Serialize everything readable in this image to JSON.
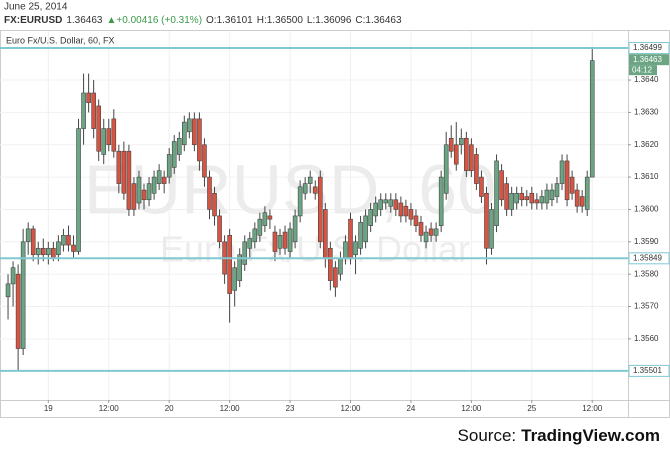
{
  "header": {
    "date": "June 25, 2014",
    "symbol": "FX:EURUSD",
    "price": "1.36463",
    "change": "▲+0.00416 (+0.31%)",
    "open": "O:1.36101",
    "high": "H:1.36500",
    "low": "L:1.36096",
    "close": "C:1.36463"
  },
  "source": {
    "prefix": "Source:",
    "site": "TradingView.com"
  },
  "chart_data": {
    "type": "candlestick",
    "subtitle": "Euro Fx/U.S. Dollar, 60, FX",
    "watermark": [
      "EURUSD, 60",
      "Euro Fx/U.S. Dollar"
    ],
    "up_color": "#6ba583",
    "down_color": "#d75442",
    "line_color": "#80c8d2",
    "grid": true,
    "xlim": [
      -1,
      123.1
    ],
    "ylim": [
      1.35411,
      1.3653
    ],
    "xticks": [
      {
        "value": 8,
        "label": "19"
      },
      {
        "value": 20,
        "label": "12:00"
      },
      {
        "value": 32,
        "label": "20"
      },
      {
        "value": 44,
        "label": "12:00"
      },
      {
        "value": 56,
        "label": "23"
      },
      {
        "value": 68,
        "label": "12:00"
      },
      {
        "value": 80,
        "label": "24"
      },
      {
        "value": 92,
        "label": "12:00"
      },
      {
        "value": 104,
        "label": "25"
      },
      {
        "value": 116,
        "label": "12:00"
      }
    ],
    "yticks": [
      {
        "value": 1.356,
        "label": "1.3560"
      },
      {
        "value": 1.357,
        "label": "1.3570"
      },
      {
        "value": 1.358,
        "label": "1.3580"
      },
      {
        "value": 1.359,
        "label": "1.3590"
      },
      {
        "value": 1.36,
        "label": "1.3600"
      },
      {
        "value": 1.361,
        "label": "1.3610"
      },
      {
        "value": 1.362,
        "label": "1.3620"
      },
      {
        "value": 1.363,
        "label": "1.3630"
      },
      {
        "value": 1.364,
        "label": "1.3640"
      }
    ],
    "hlines": [
      1.36499,
      1.35849,
      1.35501
    ],
    "last_price": 1.36463,
    "countdown": "04:12",
    "x": [
      0,
      1,
      2,
      3,
      4,
      5,
      6,
      7,
      8,
      9,
      10,
      11,
      12,
      13,
      14,
      15,
      16,
      17,
      18,
      19,
      20,
      21,
      22,
      23,
      24,
      25,
      26,
      27,
      28,
      29,
      30,
      31,
      32,
      33,
      34,
      35,
      36,
      37,
      38,
      39,
      40,
      41,
      42,
      43,
      44,
      45,
      46,
      47,
      48,
      49,
      50,
      51,
      52,
      53,
      54,
      55,
      56,
      57,
      58,
      59,
      60,
      61,
      62,
      63,
      64,
      65,
      66,
      67,
      68,
      69,
      70,
      71,
      72,
      73,
      74,
      75,
      76,
      77,
      78,
      79,
      80,
      81,
      82,
      83,
      84,
      85,
      86,
      87,
      88,
      89,
      90,
      91,
      92,
      93,
      94,
      95,
      96,
      97,
      98,
      99,
      100,
      101,
      102,
      103,
      104,
      105,
      106,
      107,
      108,
      109,
      110,
      111,
      112,
      113,
      114,
      115,
      116
    ],
    "candles": [
      [
        1.3573,
        1.358,
        1.3566,
        1.3577
      ],
      [
        1.3577,
        1.3584,
        1.357,
        1.3582
      ],
      [
        1.358,
        1.3583,
        1.355,
        1.3557
      ],
      [
        1.3557,
        1.3594,
        1.3555,
        1.359
      ],
      [
        1.359,
        1.3596,
        1.3586,
        1.3594
      ],
      [
        1.3594,
        1.3595,
        1.3584,
        1.3586
      ],
      [
        1.3586,
        1.359,
        1.3583,
        1.3588
      ],
      [
        1.3588,
        1.3591,
        1.3584,
        1.3586
      ],
      [
        1.3586,
        1.359,
        1.3583,
        1.3588
      ],
      [
        1.3588,
        1.359,
        1.3584,
        1.3585
      ],
      [
        1.3586,
        1.3592,
        1.3584,
        1.359
      ],
      [
        1.3589,
        1.3594,
        1.3587,
        1.3592
      ],
      [
        1.3592,
        1.3595,
        1.3587,
        1.3589
      ],
      [
        1.3589,
        1.3592,
        1.3585,
        1.3587
      ],
      [
        1.3587,
        1.3628,
        1.3586,
        1.3625
      ],
      [
        1.3625,
        1.3642,
        1.362,
        1.3636
      ],
      [
        1.3636,
        1.3642,
        1.363,
        1.3633
      ],
      [
        1.3636,
        1.364,
        1.3622,
        1.3625
      ],
      [
        1.3632,
        1.3634,
        1.3615,
        1.3618
      ],
      [
        1.3617,
        1.3628,
        1.3614,
        1.3625
      ],
      [
        1.3625,
        1.3628,
        1.3618,
        1.362
      ],
      [
        1.3628,
        1.3631,
        1.3616,
        1.3618
      ],
      [
        1.3618,
        1.362,
        1.3605,
        1.3608
      ],
      [
        1.3618,
        1.3621,
        1.3603,
        1.3605
      ],
      [
        1.3618,
        1.362,
        1.3598,
        1.36
      ],
      [
        1.3608,
        1.361,
        1.3598,
        1.36
      ],
      [
        1.3602,
        1.3612,
        1.36,
        1.361
      ],
      [
        1.3606,
        1.3608,
        1.36,
        1.3603
      ],
      [
        1.3603,
        1.361,
        1.3601,
        1.3608
      ],
      [
        1.3605,
        1.3612,
        1.3603,
        1.361
      ],
      [
        1.3608,
        1.3614,
        1.3606,
        1.3612
      ],
      [
        1.361,
        1.3612,
        1.3605,
        1.3608
      ],
      [
        1.361,
        1.3619,
        1.3608,
        1.3617
      ],
      [
        1.3613,
        1.3623,
        1.3611,
        1.3621
      ],
      [
        1.3617,
        1.3624,
        1.3615,
        1.3622
      ],
      [
        1.362,
        1.3629,
        1.3618,
        1.3627
      ],
      [
        1.3624,
        1.363,
        1.3622,
        1.3628
      ],
      [
        1.3628,
        1.363,
        1.3618,
        1.362
      ],
      [
        1.3628,
        1.363,
        1.3612,
        1.3615
      ],
      [
        1.362,
        1.3622,
        1.3607,
        1.361
      ],
      [
        1.361,
        1.3612,
        1.3597,
        1.36
      ],
      [
        1.3605,
        1.3607,
        1.3595,
        1.3598
      ],
      [
        1.3598,
        1.36,
        1.3588,
        1.359
      ],
      [
        1.359,
        1.3592,
        1.3577,
        1.358
      ],
      [
        1.3592,
        1.3594,
        1.3565,
        1.3574
      ],
      [
        1.3575,
        1.3584,
        1.357,
        1.3582
      ],
      [
        1.3578,
        1.3588,
        1.3576,
        1.3586
      ],
      [
        1.3583,
        1.3592,
        1.3581,
        1.359
      ],
      [
        1.3588,
        1.3593,
        1.3585,
        1.3591
      ],
      [
        1.359,
        1.3596,
        1.3588,
        1.3594
      ],
      [
        1.3592,
        1.3599,
        1.359,
        1.3597
      ],
      [
        1.3595,
        1.3601,
        1.3593,
        1.3599
      ],
      [
        1.3598,
        1.36,
        1.3594,
        1.3597
      ],
      [
        1.3593,
        1.3595,
        1.3584,
        1.3587
      ],
      [
        1.3588,
        1.3594,
        1.3586,
        1.3592
      ],
      [
        1.3593,
        1.3595,
        1.3586,
        1.3588
      ],
      [
        1.3587,
        1.3596,
        1.3585,
        1.3594
      ],
      [
        1.359,
        1.36,
        1.3588,
        1.3598
      ],
      [
        1.3598,
        1.3609,
        1.3596,
        1.3607
      ],
      [
        1.3605,
        1.361,
        1.3603,
        1.3608
      ],
      [
        1.3608,
        1.3612,
        1.3605,
        1.361
      ],
      [
        1.3607,
        1.3609,
        1.3603,
        1.3605
      ],
      [
        1.361,
        1.3612,
        1.3588,
        1.359
      ],
      [
        1.36,
        1.3602,
        1.3582,
        1.3585
      ],
      [
        1.3588,
        1.359,
        1.3575,
        1.3578
      ],
      [
        1.3582,
        1.3584,
        1.3573,
        1.3576
      ],
      [
        1.358,
        1.3587,
        1.3578,
        1.3585
      ],
      [
        1.3585,
        1.3592,
        1.3583,
        1.359
      ],
      [
        1.3597,
        1.3599,
        1.3583,
        1.3585
      ],
      [
        1.3586,
        1.3592,
        1.358,
        1.359
      ],
      [
        1.3588,
        1.3598,
        1.3586,
        1.3596
      ],
      [
        1.359,
        1.36,
        1.3588,
        1.3598
      ],
      [
        1.3595,
        1.3602,
        1.3593,
        1.36
      ],
      [
        1.3598,
        1.3604,
        1.3596,
        1.3602
      ],
      [
        1.36,
        1.3605,
        1.3598,
        1.3603
      ],
      [
        1.3602,
        1.3605,
        1.36,
        1.3603
      ],
      [
        1.3601,
        1.3605,
        1.3599,
        1.3603
      ],
      [
        1.3603,
        1.3605,
        1.3598,
        1.36
      ],
      [
        1.3602,
        1.3604,
        1.3596,
        1.3598
      ],
      [
        1.3601,
        1.3603,
        1.3596,
        1.3598
      ],
      [
        1.36,
        1.3602,
        1.3595,
        1.3597
      ],
      [
        1.3598,
        1.36,
        1.3593,
        1.3595
      ],
      [
        1.3596,
        1.3598,
        1.359,
        1.3592
      ],
      [
        1.359,
        1.3595,
        1.3588,
        1.3593
      ],
      [
        1.3594,
        1.3596,
        1.359,
        1.3592
      ],
      [
        1.3592,
        1.3596,
        1.359,
        1.3594
      ],
      [
        1.3595,
        1.3612,
        1.3593,
        1.361
      ],
      [
        1.3605,
        1.3624,
        1.3603,
        1.362
      ],
      [
        1.3622,
        1.3626,
        1.3616,
        1.3618
      ],
      [
        1.362,
        1.3627,
        1.3612,
        1.3614
      ],
      [
        1.362,
        1.3625,
        1.3617,
        1.3622
      ],
      [
        1.3622,
        1.3624,
        1.361,
        1.3612
      ],
      [
        1.362,
        1.3622,
        1.361,
        1.3612
      ],
      [
        1.3617,
        1.3619,
        1.3606,
        1.3608
      ],
      [
        1.361,
        1.3612,
        1.3602,
        1.3604
      ],
      [
        1.3605,
        1.3607,
        1.3583,
        1.3588
      ],
      [
        1.3588,
        1.3602,
        1.3586,
        1.36
      ],
      [
        1.3595,
        1.3617,
        1.3593,
        1.3615
      ],
      [
        1.3612,
        1.3614,
        1.3601,
        1.3603
      ],
      [
        1.3608,
        1.361,
        1.3598,
        1.36
      ],
      [
        1.36,
        1.3607,
        1.3598,
        1.3605
      ],
      [
        1.3602,
        1.3607,
        1.36,
        1.3605
      ],
      [
        1.3605,
        1.3607,
        1.3601,
        1.3603
      ],
      [
        1.3604,
        1.3606,
        1.3601,
        1.3603
      ],
      [
        1.3605,
        1.3607,
        1.36,
        1.3602
      ],
      [
        1.3603,
        1.3605,
        1.36,
        1.3602
      ],
      [
        1.3602,
        1.3606,
        1.36,
        1.3604
      ],
      [
        1.3602,
        1.3608,
        1.36,
        1.3606
      ],
      [
        1.3603,
        1.3608,
        1.3601,
        1.3606
      ],
      [
        1.3604,
        1.361,
        1.3602,
        1.3608
      ],
      [
        1.3608,
        1.3617,
        1.3606,
        1.3615
      ],
      [
        1.3615,
        1.3617,
        1.3601,
        1.3603
      ],
      [
        1.361,
        1.3612,
        1.3603,
        1.3605
      ],
      [
        1.3606,
        1.3608,
        1.3599,
        1.3601
      ],
      [
        1.3604,
        1.3606,
        1.3599,
        1.3601
      ],
      [
        1.36,
        1.3612,
        1.3598,
        1.361
      ],
      [
        1.361,
        1.365,
        1.361,
        1.3646
      ]
    ]
  }
}
